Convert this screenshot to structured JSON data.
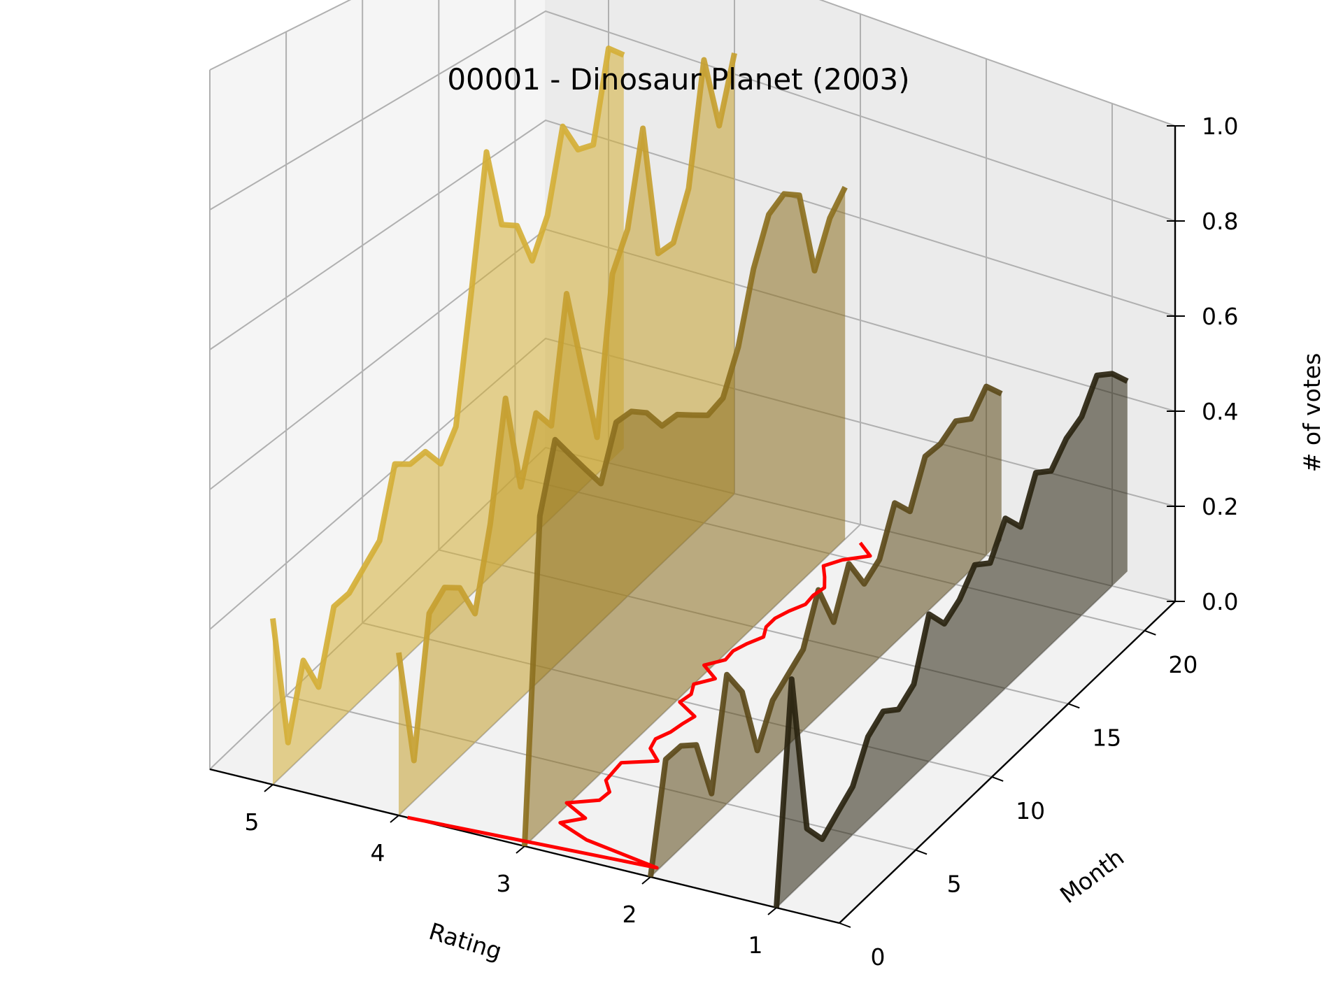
{
  "chart_data": {
    "type": "line",
    "subtype": "3d-waterfall",
    "title": "00001 - Dinosaur Planet (2003)",
    "xlabel": "Rating",
    "ylabel": "Month",
    "zlabel": "# of votes",
    "x_ticks": [
      "5",
      "4",
      "3",
      "2",
      "1"
    ],
    "y_ticks": [
      "0",
      "5",
      "10",
      "15",
      "20"
    ],
    "z_ticks": [
      "0.0",
      "0.2",
      "0.4",
      "0.6",
      "0.8",
      "1.0"
    ],
    "xlim": [
      0.5,
      5.5
    ],
    "ylim": [
      0,
      22
    ],
    "zlim": [
      0,
      1
    ],
    "grid": true,
    "series": [
      {
        "rating": 5,
        "color": "#d4af37",
        "values": [
          0.24,
          0.04,
          0.14,
          0.08,
          0.18,
          0.18,
          0.2,
          0.22,
          0.32,
          0.3,
          0.3,
          0.26,
          0.3,
          0.5,
          0.72,
          0.58,
          0.56,
          0.48,
          0.54,
          0.68,
          0.62,
          0.61,
          0.77,
          0.74
        ]
      },
      {
        "rating": 4,
        "color": "#c5a030",
        "values": [
          0.24,
          0.06,
          0.26,
          0.28,
          0.26,
          0.2,
          0.32,
          0.5,
          0.34,
          0.44,
          0.4,
          0.6,
          0.46,
          0.32,
          0.58,
          0.64,
          0.8,
          0.56,
          0.56,
          0.64,
          0.86,
          0.72,
          0.84
        ]
      },
      {
        "rating": 3,
        "color": "#8c7020",
        "values": [
          0.0,
          0.48,
          0.58,
          0.54,
          0.5,
          0.46,
          0.54,
          0.54,
          0.52,
          0.48,
          0.48,
          0.46,
          0.44,
          0.45,
          0.52,
          0.64,
          0.72,
          0.74,
          0.72,
          0.56,
          0.64,
          0.68
        ]
      },
      {
        "rating": 2,
        "color": "#5c4a1a",
        "values": [
          0.0,
          0.16,
          0.16,
          0.14,
          0.04,
          0.21,
          0.16,
          0.04,
          0.1,
          0.12,
          0.14,
          0.22,
          0.14,
          0.22,
          0.16,
          0.18,
          0.26,
          0.22,
          0.3,
          0.3,
          0.32,
          0.3,
          0.34,
          0.3
        ]
      },
      {
        "rating": 1,
        "color": "#2a2410",
        "values": [
          0.0,
          0.34,
          0.08,
          0.04,
          0.06,
          0.08,
          0.14,
          0.16,
          0.14,
          0.16,
          0.26,
          0.22,
          0.24,
          0.28,
          0.26,
          0.32,
          0.28,
          0.36,
          0.34,
          0.38,
          0.4,
          0.46,
          0.44,
          0.4
        ]
      }
    ],
    "mean_line": {
      "color": "#ff0000",
      "values": [
        3.93,
        2.02,
        2.65,
        2.93,
        2.8,
        3.02,
        2.83,
        2.82,
        2.92,
        2.93,
        2.94,
        2.72,
        2.85,
        2.88,
        2.83,
        2.81,
        2.78,
        2.97,
        2.95,
        3.0,
        2.9,
        3.06,
        2.96,
        2.97,
        2.93,
        2.87,
        2.92,
        2.92,
        2.88,
        2.82,
        2.83,
        2.81,
        2.88,
        2.96,
        2.88,
        2.73,
        2.88
      ]
    }
  }
}
